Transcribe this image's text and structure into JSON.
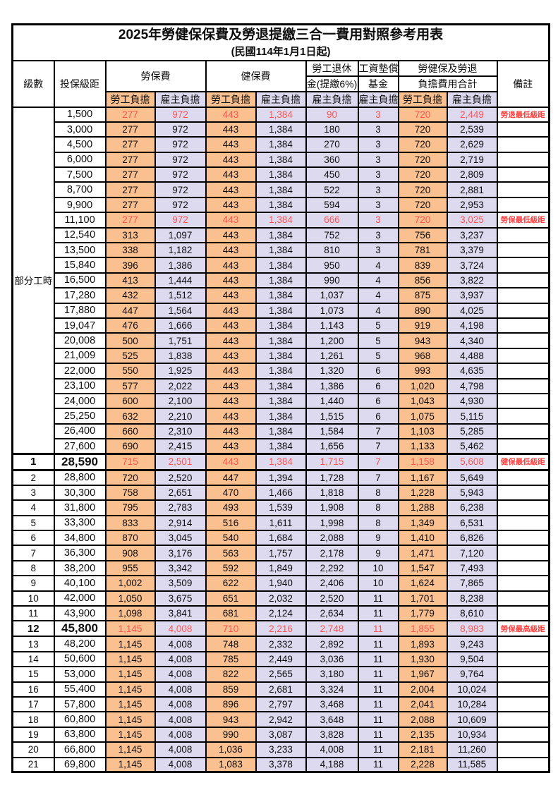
{
  "title": "2025年勞健保保費及勞退提繳三合一費用對照參考用表",
  "subtitle": "(民國114年1月1日起)",
  "header": {
    "level": "級數",
    "bracket": "投保級距",
    "labor_ins": "勞保費",
    "health_ins": "健保費",
    "pension_line1": "勞工退休",
    "pension_line2": "金(提繳6%)",
    "fund_line1": "工資墊償",
    "fund_line2": "基金",
    "total_line1": "勞健保及勞退",
    "total_line2": "負擔費用合計",
    "remark": "備註",
    "employee": "勞工負擔",
    "employer": "雇主負擔"
  },
  "part_time_label": "部分工時",
  "part_time_rowspan": 23,
  "colors": {
    "employee_fill": "#FAC090",
    "employer_fill": "#DDDAF0",
    "highlight_text": "#FB5452",
    "remark_text": "#FF4040",
    "border": "#000000"
  },
  "rows": [
    {
      "bracket": "1,500",
      "labor_emp": "277",
      "labor_er": "972",
      "health_emp": "443",
      "health_er": "1,384",
      "pension": "90",
      "fund": "3",
      "total_emp": "720",
      "total_er": "2,449",
      "remark": "勞退最低級距",
      "hl": true
    },
    {
      "bracket": "3,000",
      "labor_emp": "277",
      "labor_er": "972",
      "health_emp": "443",
      "health_er": "1,384",
      "pension": "180",
      "fund": "3",
      "total_emp": "720",
      "total_er": "2,539"
    },
    {
      "bracket": "4,500",
      "labor_emp": "277",
      "labor_er": "972",
      "health_emp": "443",
      "health_er": "1,384",
      "pension": "270",
      "fund": "3",
      "total_emp": "720",
      "total_er": "2,629"
    },
    {
      "bracket": "6,000",
      "labor_emp": "277",
      "labor_er": "972",
      "health_emp": "443",
      "health_er": "1,384",
      "pension": "360",
      "fund": "3",
      "total_emp": "720",
      "total_er": "2,719"
    },
    {
      "bracket": "7,500",
      "labor_emp": "277",
      "labor_er": "972",
      "health_emp": "443",
      "health_er": "1,384",
      "pension": "450",
      "fund": "3",
      "total_emp": "720",
      "total_er": "2,809"
    },
    {
      "bracket": "8,700",
      "labor_emp": "277",
      "labor_er": "972",
      "health_emp": "443",
      "health_er": "1,384",
      "pension": "522",
      "fund": "3",
      "total_emp": "720",
      "total_er": "2,881"
    },
    {
      "bracket": "9,900",
      "labor_emp": "277",
      "labor_er": "972",
      "health_emp": "443",
      "health_er": "1,384",
      "pension": "594",
      "fund": "3",
      "total_emp": "720",
      "total_er": "2,953"
    },
    {
      "bracket": "11,100",
      "labor_emp": "277",
      "labor_er": "972",
      "health_emp": "443",
      "health_er": "1,384",
      "pension": "666",
      "fund": "3",
      "total_emp": "720",
      "total_er": "3,025",
      "remark": "勞保最低級距",
      "hl": true
    },
    {
      "bracket": "12,540",
      "labor_emp": "313",
      "labor_er": "1,097",
      "health_emp": "443",
      "health_er": "1,384",
      "pension": "752",
      "fund": "3",
      "total_emp": "756",
      "total_er": "3,237"
    },
    {
      "bracket": "13,500",
      "labor_emp": "338",
      "labor_er": "1,182",
      "health_emp": "443",
      "health_er": "1,384",
      "pension": "810",
      "fund": "3",
      "total_emp": "781",
      "total_er": "3,379"
    },
    {
      "bracket": "15,840",
      "labor_emp": "396",
      "labor_er": "1,386",
      "health_emp": "443",
      "health_er": "1,384",
      "pension": "950",
      "fund": "4",
      "total_emp": "839",
      "total_er": "3,724"
    },
    {
      "bracket": "16,500",
      "labor_emp": "413",
      "labor_er": "1,444",
      "health_emp": "443",
      "health_er": "1,384",
      "pension": "990",
      "fund": "4",
      "total_emp": "856",
      "total_er": "3,822"
    },
    {
      "bracket": "17,280",
      "labor_emp": "432",
      "labor_er": "1,512",
      "health_emp": "443",
      "health_er": "1,384",
      "pension": "1,037",
      "fund": "4",
      "total_emp": "875",
      "total_er": "3,937"
    },
    {
      "bracket": "17,880",
      "labor_emp": "447",
      "labor_er": "1,564",
      "health_emp": "443",
      "health_er": "1,384",
      "pension": "1,073",
      "fund": "4",
      "total_emp": "890",
      "total_er": "4,025"
    },
    {
      "bracket": "19,047",
      "labor_emp": "476",
      "labor_er": "1,666",
      "health_emp": "443",
      "health_er": "1,384",
      "pension": "1,143",
      "fund": "5",
      "total_emp": "919",
      "total_er": "4,198"
    },
    {
      "bracket": "20,008",
      "labor_emp": "500",
      "labor_er": "1,751",
      "health_emp": "443",
      "health_er": "1,384",
      "pension": "1,200",
      "fund": "5",
      "total_emp": "943",
      "total_er": "4,340"
    },
    {
      "bracket": "21,009",
      "labor_emp": "525",
      "labor_er": "1,838",
      "health_emp": "443",
      "health_er": "1,384",
      "pension": "1,261",
      "fund": "5",
      "total_emp": "968",
      "total_er": "4,488"
    },
    {
      "bracket": "22,000",
      "labor_emp": "550",
      "labor_er": "1,925",
      "health_emp": "443",
      "health_er": "1,384",
      "pension": "1,320",
      "fund": "6",
      "total_emp": "993",
      "total_er": "4,635"
    },
    {
      "bracket": "23,100",
      "labor_emp": "577",
      "labor_er": "2,022",
      "health_emp": "443",
      "health_er": "1,384",
      "pension": "1,386",
      "fund": "6",
      "total_emp": "1,020",
      "total_er": "4,798"
    },
    {
      "bracket": "24,000",
      "labor_emp": "600",
      "labor_er": "2,100",
      "health_emp": "443",
      "health_er": "1,384",
      "pension": "1,440",
      "fund": "6",
      "total_emp": "1,043",
      "total_er": "4,930"
    },
    {
      "bracket": "25,250",
      "labor_emp": "632",
      "labor_er": "2,210",
      "health_emp": "443",
      "health_er": "1,384",
      "pension": "1,515",
      "fund": "6",
      "total_emp": "1,075",
      "total_er": "5,115"
    },
    {
      "bracket": "26,400",
      "labor_emp": "660",
      "labor_er": "2,310",
      "health_emp": "443",
      "health_er": "1,384",
      "pension": "1,584",
      "fund": "7",
      "total_emp": "1,103",
      "total_er": "5,285"
    },
    {
      "bracket": "27,600",
      "labor_emp": "690",
      "labor_er": "2,415",
      "health_emp": "443",
      "health_er": "1,384",
      "pension": "1,656",
      "fund": "7",
      "total_emp": "1,133",
      "total_er": "5,462"
    },
    {
      "level": "1",
      "bracket": "28,590",
      "labor_emp": "715",
      "labor_er": "2,501",
      "health_emp": "443",
      "health_er": "1,384",
      "pension": "1,715",
      "fund": "7",
      "total_emp": "1,158",
      "total_er": "5,608",
      "remark": "健保最低級距",
      "hl": true,
      "bold": true,
      "thick": true
    },
    {
      "level": "2",
      "bracket": "28,800",
      "labor_emp": "720",
      "labor_er": "2,520",
      "health_emp": "447",
      "health_er": "1,394",
      "pension": "1,728",
      "fund": "7",
      "total_emp": "1,167",
      "total_er": "5,649"
    },
    {
      "level": "3",
      "bracket": "30,300",
      "labor_emp": "758",
      "labor_er": "2,651",
      "health_emp": "470",
      "health_er": "1,466",
      "pension": "1,818",
      "fund": "8",
      "total_emp": "1,228",
      "total_er": "5,943"
    },
    {
      "level": "4",
      "bracket": "31,800",
      "labor_emp": "795",
      "labor_er": "2,783",
      "health_emp": "493",
      "health_er": "1,539",
      "pension": "1,908",
      "fund": "8",
      "total_emp": "1,288",
      "total_er": "6,238"
    },
    {
      "level": "5",
      "bracket": "33,300",
      "labor_emp": "833",
      "labor_er": "2,914",
      "health_emp": "516",
      "health_er": "1,611",
      "pension": "1,998",
      "fund": "8",
      "total_emp": "1,349",
      "total_er": "6,531"
    },
    {
      "level": "6",
      "bracket": "34,800",
      "labor_emp": "870",
      "labor_er": "3,045",
      "health_emp": "540",
      "health_er": "1,684",
      "pension": "2,088",
      "fund": "9",
      "total_emp": "1,410",
      "total_er": "6,826"
    },
    {
      "level": "7",
      "bracket": "36,300",
      "labor_emp": "908",
      "labor_er": "3,176",
      "health_emp": "563",
      "health_er": "1,757",
      "pension": "2,178",
      "fund": "9",
      "total_emp": "1,471",
      "total_er": "7,120"
    },
    {
      "level": "8",
      "bracket": "38,200",
      "labor_emp": "955",
      "labor_er": "3,342",
      "health_emp": "592",
      "health_er": "1,849",
      "pension": "2,292",
      "fund": "10",
      "total_emp": "1,547",
      "total_er": "7,493"
    },
    {
      "level": "9",
      "bracket": "40,100",
      "labor_emp": "1,002",
      "labor_er": "3,509",
      "health_emp": "622",
      "health_er": "1,940",
      "pension": "2,406",
      "fund": "10",
      "total_emp": "1,624",
      "total_er": "7,865"
    },
    {
      "level": "10",
      "bracket": "42,000",
      "labor_emp": "1,050",
      "labor_er": "3,675",
      "health_emp": "651",
      "health_er": "2,032",
      "pension": "2,520",
      "fund": "11",
      "total_emp": "1,701",
      "total_er": "8,238"
    },
    {
      "level": "11",
      "bracket": "43,900",
      "labor_emp": "1,098",
      "labor_er": "3,841",
      "health_emp": "681",
      "health_er": "2,124",
      "pension": "2,634",
      "fund": "11",
      "total_emp": "1,779",
      "total_er": "8,610"
    },
    {
      "level": "12",
      "bracket": "45,800",
      "labor_emp": "1,145",
      "labor_er": "4,008",
      "health_emp": "710",
      "health_er": "2,216",
      "pension": "2,748",
      "fund": "11",
      "total_emp": "1,855",
      "total_er": "8,983",
      "remark": "勞保最高級距",
      "hl": true,
      "bold": true
    },
    {
      "level": "13",
      "bracket": "48,200",
      "labor_emp": "1,145",
      "labor_er": "4,008",
      "health_emp": "748",
      "health_er": "2,332",
      "pension": "2,892",
      "fund": "11",
      "total_emp": "1,893",
      "total_er": "9,243"
    },
    {
      "level": "14",
      "bracket": "50,600",
      "labor_emp": "1,145",
      "labor_er": "4,008",
      "health_emp": "785",
      "health_er": "2,449",
      "pension": "3,036",
      "fund": "11",
      "total_emp": "1,930",
      "total_er": "9,504"
    },
    {
      "level": "15",
      "bracket": "53,000",
      "labor_emp": "1,145",
      "labor_er": "4,008",
      "health_emp": "822",
      "health_er": "2,565",
      "pension": "3,180",
      "fund": "11",
      "total_emp": "1,967",
      "total_er": "9,764"
    },
    {
      "level": "16",
      "bracket": "55,400",
      "labor_emp": "1,145",
      "labor_er": "4,008",
      "health_emp": "859",
      "health_er": "2,681",
      "pension": "3,324",
      "fund": "11",
      "total_emp": "2,004",
      "total_er": "10,024"
    },
    {
      "level": "17",
      "bracket": "57,800",
      "labor_emp": "1,145",
      "labor_er": "4,008",
      "health_emp": "896",
      "health_er": "2,797",
      "pension": "3,468",
      "fund": "11",
      "total_emp": "2,041",
      "total_er": "10,284"
    },
    {
      "level": "18",
      "bracket": "60,800",
      "labor_emp": "1,145",
      "labor_er": "4,008",
      "health_emp": "943",
      "health_er": "2,942",
      "pension": "3,648",
      "fund": "11",
      "total_emp": "2,088",
      "total_er": "10,609"
    },
    {
      "level": "19",
      "bracket": "63,800",
      "labor_emp": "1,145",
      "labor_er": "4,008",
      "health_emp": "990",
      "health_er": "3,087",
      "pension": "3,828",
      "fund": "11",
      "total_emp": "2,135",
      "total_er": "10,934"
    },
    {
      "level": "20",
      "bracket": "66,800",
      "labor_emp": "1,145",
      "labor_er": "4,008",
      "health_emp": "1,036",
      "health_er": "3,233",
      "pension": "4,008",
      "fund": "11",
      "total_emp": "2,181",
      "total_er": "11,260"
    },
    {
      "level": "21",
      "bracket": "69,800",
      "labor_emp": "1,145",
      "labor_er": "4,008",
      "health_emp": "1,083",
      "health_er": "3,378",
      "pension": "4,188",
      "fund": "11",
      "total_emp": "2,228",
      "total_er": "11,585"
    }
  ]
}
